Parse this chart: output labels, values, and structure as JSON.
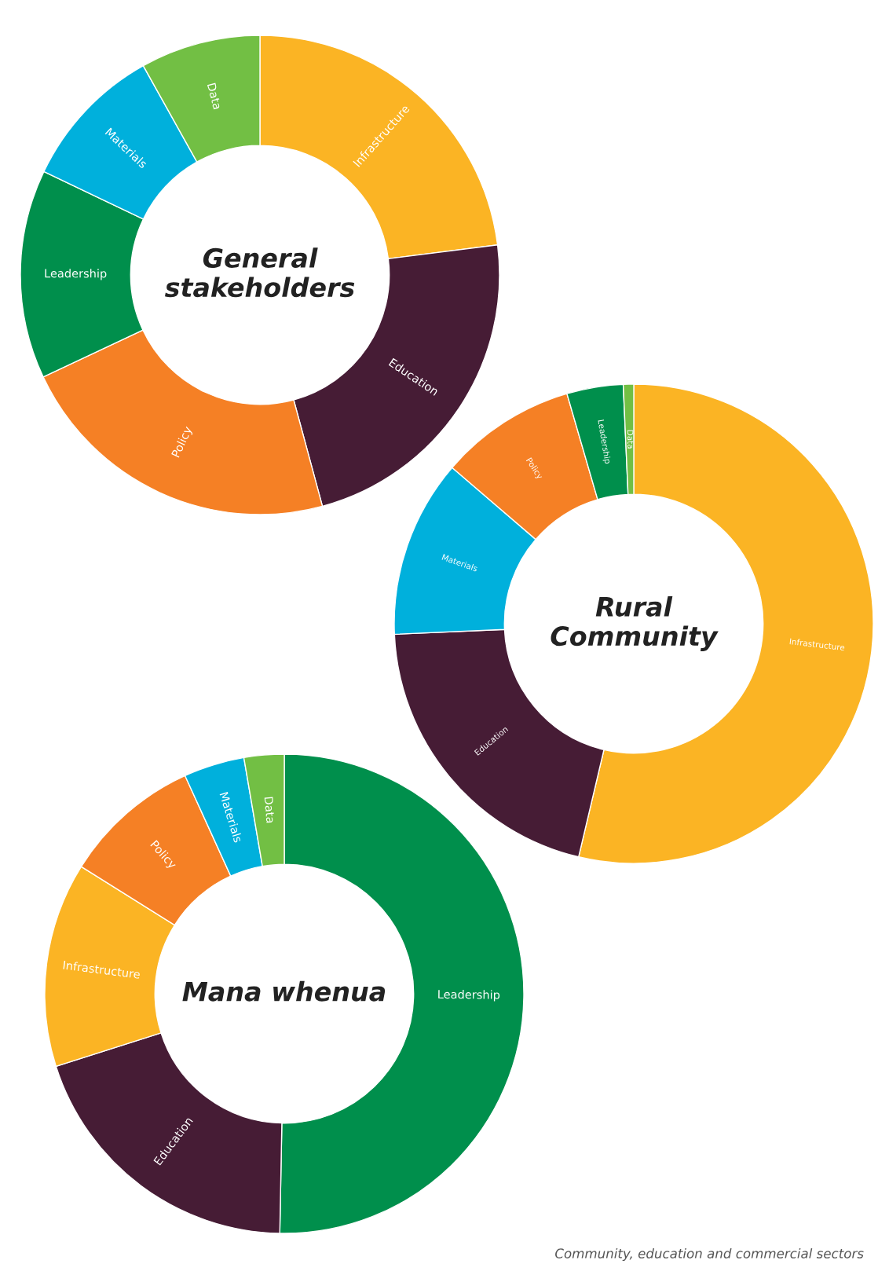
{
  "chart_data": [
    {
      "type": "donut",
      "title": "General\nstakeholders",
      "categories": [
        "Infrastructure",
        "Education",
        "Policy",
        "Leadership",
        "Materials",
        "Data"
      ],
      "values": [
        23,
        22.8,
        22.2,
        14.1,
        9.8,
        8.1
      ],
      "colors": [
        "#fbb424",
        "#461c35",
        "#f58025",
        "#008f4c",
        "#00b0dc",
        "#72bf44"
      ]
    },
    {
      "type": "donut",
      "title": "Rural\nCommunity",
      "categories": [
        "Infrastructure",
        "Education",
        "Materials",
        "Policy",
        "Leadership",
        "Data"
      ],
      "values": [
        53.7,
        20.6,
        12,
        9.2,
        3.8,
        0.7
      ],
      "colors": [
        "#fbb424",
        "#461c35",
        "#00b0dc",
        "#f58025",
        "#008f4c",
        "#72bf44"
      ]
    },
    {
      "type": "donut",
      "title": "Mana whenua",
      "categories": [
        "Leadership",
        "Education",
        "Infrastructure",
        "Policy",
        "Materials",
        "Data"
      ],
      "values": [
        50.3,
        19.8,
        13.8,
        9.3,
        4.1,
        2.7
      ],
      "colors": [
        "#008f4c",
        "#461c35",
        "#fbb424",
        "#f58025",
        "#00b0dc",
        "#72bf44"
      ],
      "annotations": [
        "Community, education and commercial sectors"
      ]
    }
  ]
}
